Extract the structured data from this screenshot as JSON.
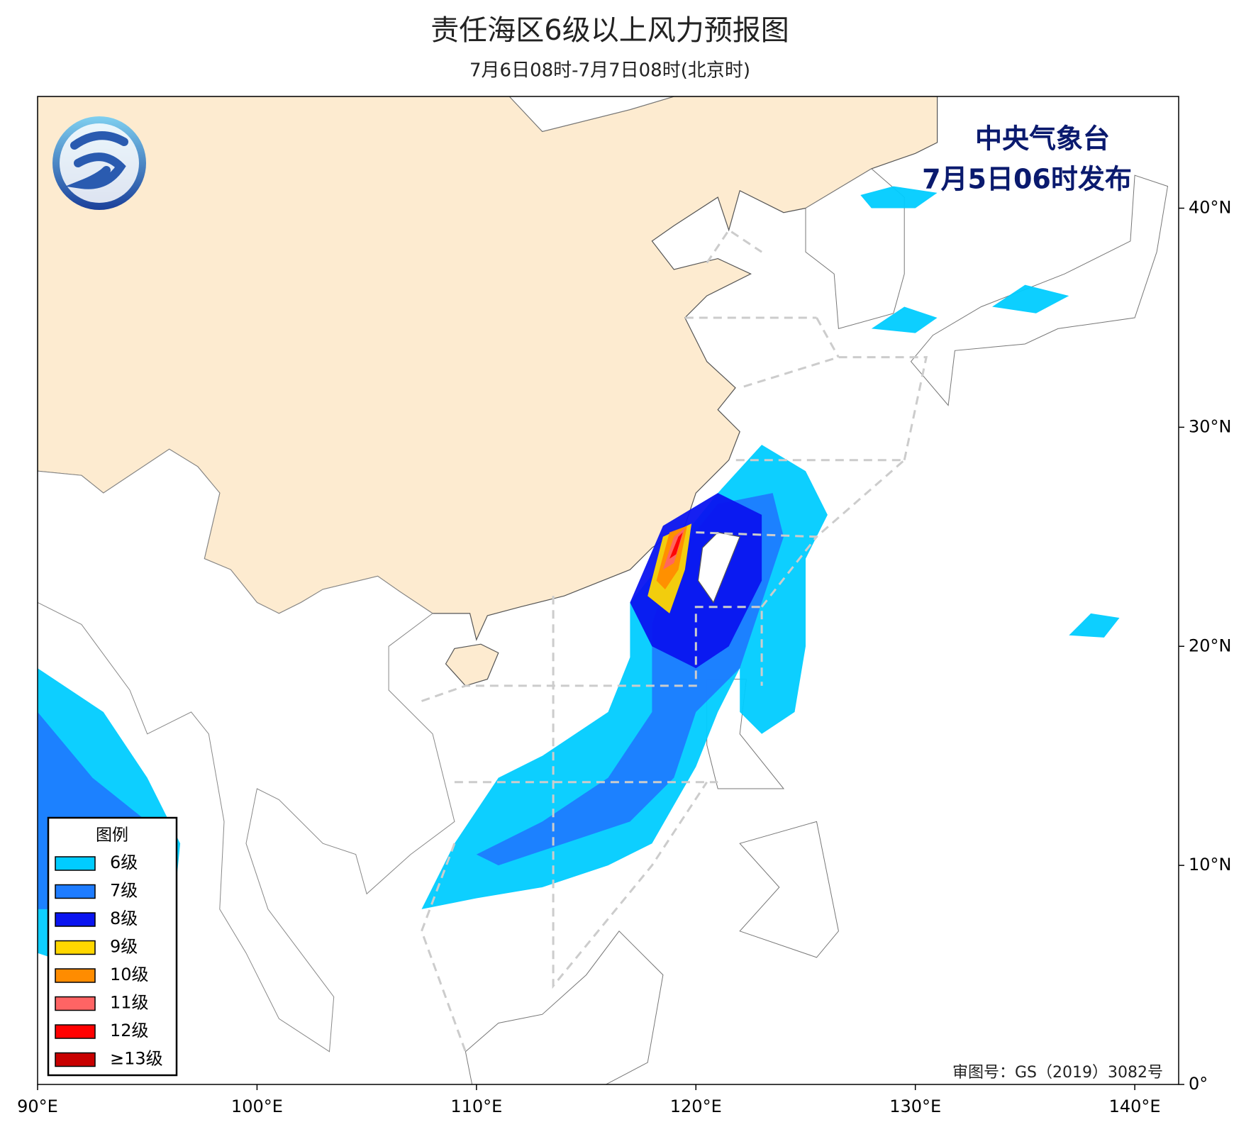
{
  "header": {
    "title": "责任海区6级以上风力预报图",
    "subtitle": "7月6日08时-7月7日08时(北京时)"
  },
  "issuer": {
    "name": "中央气象台",
    "time": "7月5日06时发布"
  },
  "map": {
    "xlim": [
      90,
      142
    ],
    "ylim": [
      0,
      45.1
    ],
    "xticks": [
      {
        "value": 90,
        "label": "90°E"
      },
      {
        "value": 100,
        "label": "100°E"
      },
      {
        "value": 110,
        "label": "110°E"
      },
      {
        "value": 120,
        "label": "120°E"
      },
      {
        "value": 130,
        "label": "130°E"
      },
      {
        "value": 140,
        "label": "140°E"
      }
    ],
    "yticks": [
      {
        "value": 0,
        "label": "0°"
      },
      {
        "value": 10,
        "label": "10°N"
      },
      {
        "value": 20,
        "label": "20°N"
      },
      {
        "value": 30,
        "label": "30°N"
      },
      {
        "value": 40,
        "label": "40°N"
      }
    ]
  },
  "legend": {
    "title": "图例",
    "items": [
      {
        "label": "6级",
        "color": "#00ccff"
      },
      {
        "label": "7级",
        "color": "#1e7cff"
      },
      {
        "label": "8级",
        "color": "#0a14f0"
      },
      {
        "label": "9级",
        "color": "#ffd700"
      },
      {
        "label": "10级",
        "color": "#ff8c00"
      },
      {
        "label": "11级",
        "color": "#ff6464"
      },
      {
        "label": "12级",
        "color": "#ff0000"
      },
      {
        "label": "≥13级",
        "color": "#c80000"
      }
    ]
  },
  "approval": "审图号：GS（2019）3082号"
}
